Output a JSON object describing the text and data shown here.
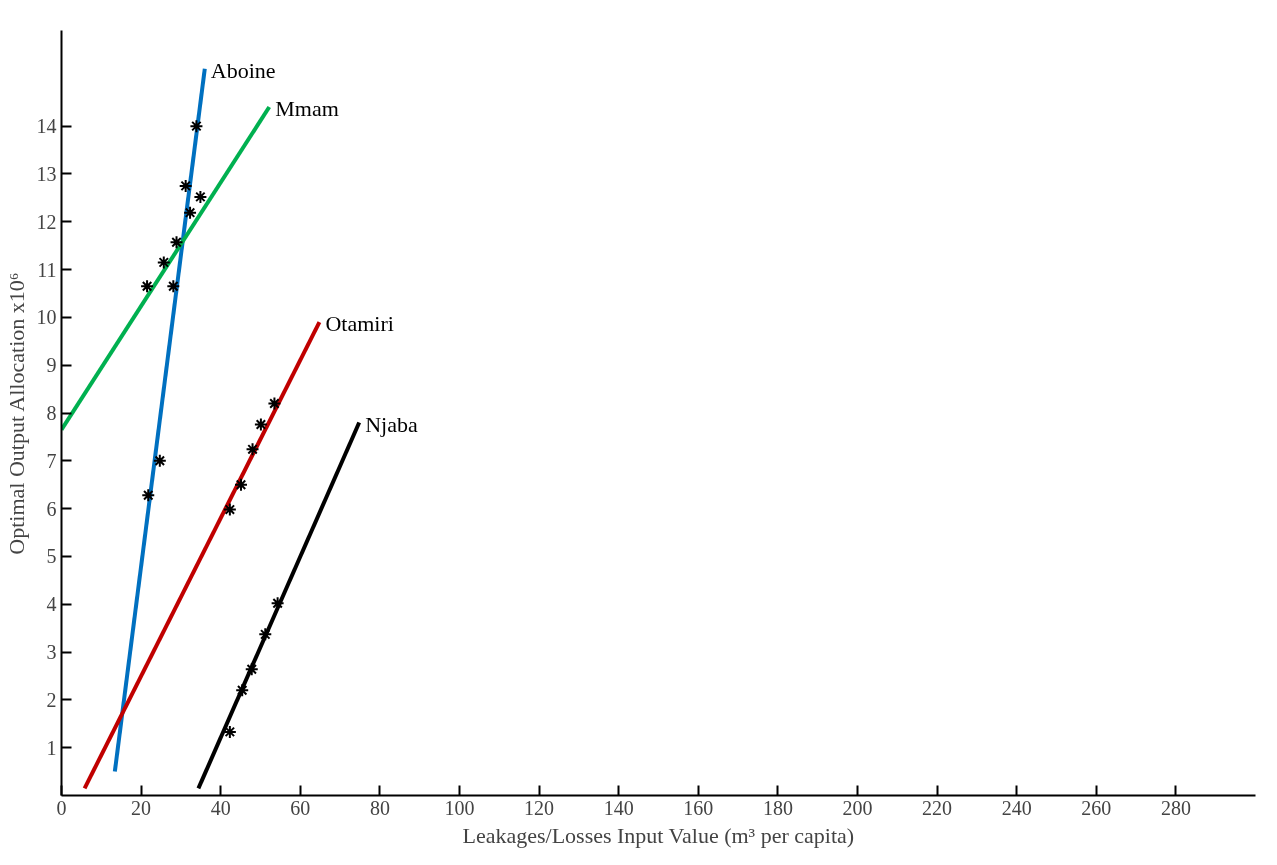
{
  "chart_data": {
    "type": "line",
    "xlabel": "Leakages/Losses Input Value (m³ per capita)",
    "ylabel": "Optimal Output Allocation x10⁶",
    "xlim": [
      0,
      300
    ],
    "ylim": [
      0,
      16
    ],
    "xticks": [
      0,
      20,
      40,
      60,
      80,
      100,
      120,
      140,
      160,
      180,
      200,
      220,
      240,
      260,
      280
    ],
    "yticks": [
      1,
      2,
      3,
      4,
      5,
      6,
      7,
      8,
      9,
      10,
      11,
      12,
      13,
      14
    ],
    "grid": false,
    "line_style": "solid",
    "series": [
      {
        "name": "Aboine",
        "color": "#0070c0",
        "x": [
          13.4,
          36.0
        ],
        "values": [
          0.5,
          15.2
        ]
      },
      {
        "type": "scatter",
        "marker": "cross",
        "color": "#000000",
        "x": [
          21.8,
          24.7,
          28.1,
          31.2,
          33.9
        ],
        "values": [
          6.28,
          7.0,
          10.65,
          12.75,
          14.0
        ]
      },
      {
        "name": "Mmam",
        "color": "#00b050",
        "x": [
          0,
          52.2
        ],
        "values": [
          7.65,
          14.4
        ]
      },
      {
        "type": "scatter",
        "marker": "cross",
        "color": "#000000",
        "x": [
          21.5,
          25.7,
          28.9,
          32.3,
          34.9
        ],
        "values": [
          10.65,
          11.15,
          11.57,
          12.19,
          12.52
        ]
      },
      {
        "name": "Otamiri",
        "color": "#c00000",
        "x": [
          5.8,
          64.8
        ],
        "values": [
          0.15,
          9.9
        ]
      },
      {
        "type": "scatter",
        "marker": "cross",
        "color": "#000000",
        "x": [
          42.3,
          45.1,
          48.0,
          50.1,
          53.5
        ],
        "values": [
          5.98,
          6.5,
          7.24,
          7.76,
          8.2
        ]
      },
      {
        "name": "Njaba",
        "color": "#000000",
        "x": [
          34.4,
          74.8
        ],
        "values": [
          0.15,
          7.8
        ]
      },
      {
        "type": "scatter",
        "marker": "cross",
        "color": "#000000",
        "x": [
          42.3,
          45.4,
          47.8,
          51.2,
          54.3
        ],
        "values": [
          1.33,
          2.2,
          2.64,
          3.37,
          4.02
        ]
      }
    ]
  }
}
